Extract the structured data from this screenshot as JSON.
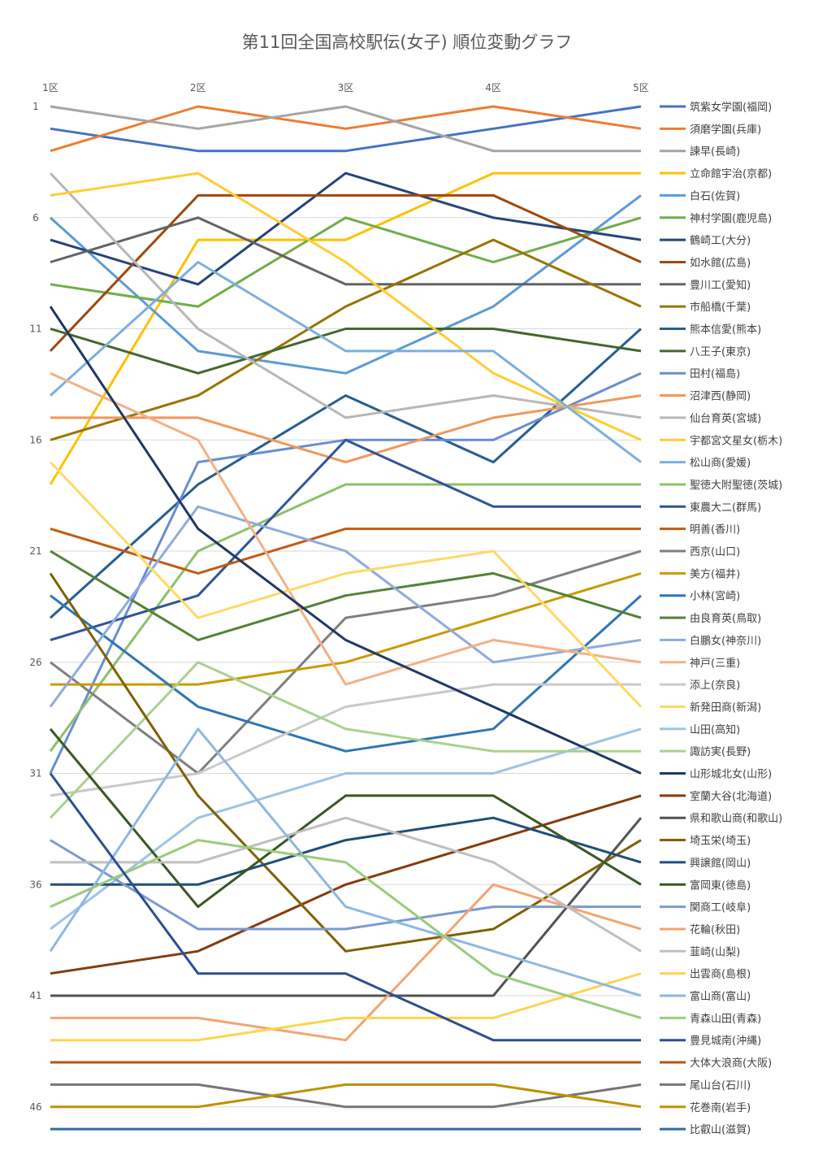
{
  "chart_data": {
    "type": "line",
    "title": "第11回全国高校駅伝(女子) 順位変動グラフ",
    "x": [
      "1区",
      "2区",
      "3区",
      "4区",
      "5区"
    ],
    "y_axis": {
      "reversed": true,
      "min": 1,
      "max": 47,
      "ticks": [
        1,
        6,
        11,
        16,
        21,
        26,
        31,
        36,
        41,
        46
      ]
    },
    "grid": true,
    "legend_position": "right",
    "series": [
      {
        "name": "筑紫女学園(福岡)",
        "color": "#4472C4",
        "values": [
          2,
          3,
          3,
          2,
          1
        ]
      },
      {
        "name": "須磨学園(兵庫)",
        "color": "#ED7D31",
        "values": [
          3,
          1,
          2,
          1,
          2
        ]
      },
      {
        "name": "諫早(長崎)",
        "color": "#A5A5A5",
        "values": [
          1,
          2,
          1,
          3,
          3
        ]
      },
      {
        "name": "立命館宇治(京都)",
        "color": "#FFC000",
        "values": [
          18,
          7,
          7,
          4,
          4
        ]
      },
      {
        "name": "白石(佐賀)",
        "color": "#5B9BD5",
        "values": [
          6,
          12,
          13,
          10,
          5
        ]
      },
      {
        "name": "神村学園(鹿児島)",
        "color": "#70AD47",
        "values": [
          9,
          10,
          6,
          8,
          6
        ]
      },
      {
        "name": "鶴崎工(大分)",
        "color": "#264478",
        "values": [
          7,
          9,
          4,
          6,
          7
        ]
      },
      {
        "name": "如水館(広島)",
        "color": "#9E480E",
        "values": [
          12,
          5,
          5,
          5,
          8
        ]
      },
      {
        "name": "豊川工(愛知)",
        "color": "#636363",
        "values": [
          8,
          6,
          9,
          9,
          9
        ]
      },
      {
        "name": "市船橋(千葉)",
        "color": "#997300",
        "values": [
          16,
          14,
          10,
          7,
          10
        ]
      },
      {
        "name": "熊本信愛(熊本)",
        "color": "#255E91",
        "values": [
          24,
          18,
          14,
          17,
          11
        ]
      },
      {
        "name": "八王子(東京)",
        "color": "#43682B",
        "values": [
          11,
          13,
          11,
          11,
          12
        ]
      },
      {
        "name": "田村(福島)",
        "color": "#698ED0",
        "values": [
          31,
          17,
          16,
          16,
          13
        ]
      },
      {
        "name": "沼津西(静岡)",
        "color": "#F1975A",
        "values": [
          15,
          15,
          17,
          15,
          14
        ]
      },
      {
        "name": "仙台育英(宮城)",
        "color": "#B7B7B7",
        "values": [
          4,
          11,
          15,
          14,
          15
        ]
      },
      {
        "name": "宇都宮文星女(栃木)",
        "color": "#FFCD33",
        "values": [
          5,
          4,
          8,
          13,
          16
        ]
      },
      {
        "name": "松山商(愛媛)",
        "color": "#7CAFDD",
        "values": [
          14,
          8,
          12,
          12,
          17
        ]
      },
      {
        "name": "聖徳大附聖徳(茨城)",
        "color": "#8CC168",
        "values": [
          30,
          21,
          18,
          18,
          18
        ]
      },
      {
        "name": "東農大二(群馬)",
        "color": "#2F5597",
        "values": [
          25,
          23,
          16,
          19,
          19
        ]
      },
      {
        "name": "明善(香川)",
        "color": "#C55A11",
        "values": [
          20,
          22,
          20,
          20,
          20
        ]
      },
      {
        "name": "西京(山口)",
        "color": "#7F7F7F",
        "values": [
          26,
          31,
          24,
          23,
          21
        ]
      },
      {
        "name": "美方(福井)",
        "color": "#C99A00",
        "values": [
          27,
          27,
          26,
          24,
          22
        ]
      },
      {
        "name": "小林(宮崎)",
        "color": "#2E75B6",
        "values": [
          23,
          28,
          30,
          29,
          23
        ]
      },
      {
        "name": "由良育英(鳥取)",
        "color": "#548235",
        "values": [
          21,
          25,
          23,
          22,
          24
        ]
      },
      {
        "name": "白鵬女(神奈川)",
        "color": "#8FAADC",
        "values": [
          28,
          19,
          21,
          26,
          25
        ]
      },
      {
        "name": "神戸(三重)",
        "color": "#F4B183",
        "values": [
          13,
          16,
          27,
          25,
          26
        ]
      },
      {
        "name": "添上(奈良)",
        "color": "#C9C9C9",
        "values": [
          32,
          31,
          28,
          27,
          27
        ]
      },
      {
        "name": "新発田商(新潟)",
        "color": "#FFD966",
        "values": [
          17,
          24,
          22,
          21,
          28
        ]
      },
      {
        "name": "山田(高知)",
        "color": "#9DC3E6",
        "values": [
          38,
          33,
          31,
          31,
          29
        ]
      },
      {
        "name": "諏訪実(長野)",
        "color": "#A9D18E",
        "values": [
          33,
          26,
          29,
          30,
          30
        ]
      },
      {
        "name": "山形城北女(山形)",
        "color": "#203864",
        "values": [
          10,
          20,
          25,
          28,
          31
        ]
      },
      {
        "name": "室蘭大谷(北海道)",
        "color": "#843C0C",
        "values": [
          40,
          39,
          36,
          34,
          32
        ]
      },
      {
        "name": "県和歌山商(和歌山)",
        "color": "#525252",
        "values": [
          41,
          41,
          41,
          41,
          33
        ]
      },
      {
        "name": "埼玉栄(埼玉)",
        "color": "#7F6000",
        "values": [
          22,
          32,
          39,
          38,
          34
        ]
      },
      {
        "name": "興譲館(岡山)",
        "color": "#1F4E79",
        "values": [
          36,
          36,
          34,
          33,
          35
        ]
      },
      {
        "name": "富岡東(徳島)",
        "color": "#385723",
        "values": [
          29,
          37,
          32,
          32,
          36
        ]
      },
      {
        "name": "関商工(岐阜)",
        "color": "#7C99D2",
        "values": [
          34,
          38,
          38,
          37,
          37
        ]
      },
      {
        "name": "花輪(秋田)",
        "color": "#F4A470",
        "values": [
          42,
          42,
          43,
          36,
          38
        ]
      },
      {
        "name": "韮崎(山梨)",
        "color": "#BFBFBF",
        "values": [
          35,
          35,
          33,
          35,
          39
        ]
      },
      {
        "name": "出雲商(島根)",
        "color": "#FFD44F",
        "values": [
          43,
          43,
          42,
          42,
          40
        ]
      },
      {
        "name": "富山商(富山)",
        "color": "#8DB8E1",
        "values": [
          39,
          29,
          37,
          39,
          41
        ]
      },
      {
        "name": "青森山田(青森)",
        "color": "#9ACB7A",
        "values": [
          37,
          34,
          35,
          40,
          42
        ]
      },
      {
        "name": "豊見城南(沖縄)",
        "color": "#2D4F8E",
        "values": [
          31,
          40,
          40,
          43,
          43
        ]
      },
      {
        "name": "大体大浪商(大阪)",
        "color": "#C0500E",
        "values": [
          44,
          44,
          44,
          44,
          44
        ]
      },
      {
        "name": "尾山台(石川)",
        "color": "#767676",
        "values": [
          45,
          45,
          46,
          46,
          45
        ]
      },
      {
        "name": "花巻南(岩手)",
        "color": "#BF9000",
        "values": [
          46,
          46,
          45,
          45,
          46
        ]
      },
      {
        "name": "比叡山(滋賀)",
        "color": "#2E6BA6",
        "values": [
          47,
          47,
          47,
          47,
          47
        ]
      }
    ]
  }
}
